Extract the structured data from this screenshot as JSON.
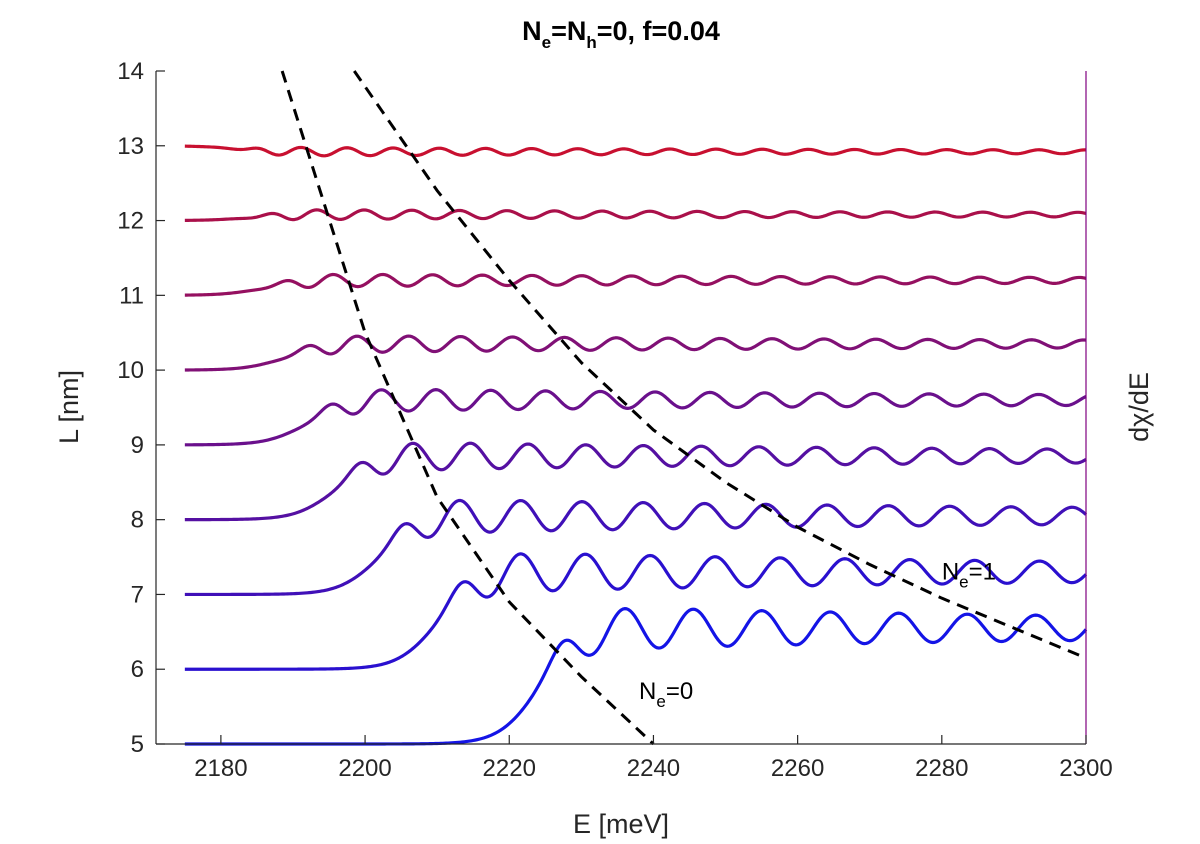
{
  "chart_data": {
    "type": "line",
    "title": {
      "part1": "N",
      "sub1": "e",
      "part2": "=N",
      "sub2": "h",
      "part3": "=0, f=0.04"
    },
    "xlabel": "E [meV]",
    "ylabel": "L [nm]",
    "ylabel_right": "dχ/dE",
    "xlim": [
      2171,
      2300
    ],
    "ylim": [
      5,
      14
    ],
    "xticks": [
      "2180",
      "2200",
      "2220",
      "2240",
      "2260",
      "2280",
      "2300"
    ],
    "yticks": [
      "5",
      "6",
      "7",
      "8",
      "9",
      "10",
      "11",
      "12",
      "13",
      "14"
    ],
    "grid": false,
    "right_axis_color": "#800080",
    "series": [
      {
        "name": "L=5",
        "L": 5,
        "onset": 2224,
        "baseline": 5.0,
        "plateau": 6.55,
        "amp": 0.3,
        "period": 9.5,
        "color": "#1414e6"
      },
      {
        "name": "L=6",
        "L": 6,
        "onset": 2210,
        "baseline": 6.0,
        "plateau": 7.3,
        "amp": 0.28,
        "period": 9.0,
        "color": "#2a10cf"
      },
      {
        "name": "L=7",
        "L": 7,
        "onset": 2202,
        "baseline": 7.0,
        "plateau": 8.05,
        "amp": 0.24,
        "period": 8.5,
        "color": "#4010b8"
      },
      {
        "name": "L=8",
        "L": 8,
        "onset": 2196,
        "baseline": 8.0,
        "plateau": 8.85,
        "amp": 0.2,
        "period": 8.0,
        "color": "#5510a2"
      },
      {
        "name": "L=9",
        "L": 9,
        "onset": 2192,
        "baseline": 9.0,
        "plateau": 9.6,
        "amp": 0.16,
        "period": 7.6,
        "color": "#6a108c"
      },
      {
        "name": "L=10",
        "L": 10,
        "onset": 2189,
        "baseline": 10.0,
        "plateau": 10.35,
        "amp": 0.12,
        "period": 7.2,
        "color": "#801076"
      },
      {
        "name": "L=11",
        "L": 11,
        "onset": 2186,
        "baseline": 11.0,
        "plateau": 11.2,
        "amp": 0.09,
        "period": 6.9,
        "color": "#951060"
      },
      {
        "name": "L=12",
        "L": 12,
        "onset": 2184,
        "baseline": 12.0,
        "plateau": 12.08,
        "amp": 0.07,
        "period": 6.6,
        "color": "#aa104a"
      },
      {
        "name": "L=13",
        "L": 13,
        "onset": 2182,
        "baseline": 13.0,
        "plateau": 12.92,
        "amp": 0.06,
        "period": 6.4,
        "color": "#c81030"
      }
    ],
    "dashed_lines": [
      {
        "name": "Ne=0",
        "points": [
          [
            2188.5,
            14
          ],
          [
            2200,
            10.5
          ],
          [
            2210,
            8.3
          ],
          [
            2220,
            6.9
          ],
          [
            2230,
            5.9
          ],
          [
            2240,
            5.0
          ]
        ]
      },
      {
        "name": "Ne=1",
        "points": [
          [
            2198.5,
            14
          ],
          [
            2210,
            12.4
          ],
          [
            2220,
            11.2
          ],
          [
            2230,
            10.1
          ],
          [
            2240,
            9.2
          ],
          [
            2250,
            8.5
          ],
          [
            2260,
            7.9
          ],
          [
            2270,
            7.4
          ],
          [
            2280,
            6.95
          ],
          [
            2290,
            6.55
          ],
          [
            2300,
            6.15
          ]
        ]
      }
    ],
    "annotations": [
      {
        "base": "N",
        "sub": "e",
        "rest": "=0",
        "x": 2238,
        "y": 5.6
      },
      {
        "base": "N",
        "sub": "e",
        "rest": "=1",
        "x": 2280,
        "y": 7.2
      }
    ]
  }
}
